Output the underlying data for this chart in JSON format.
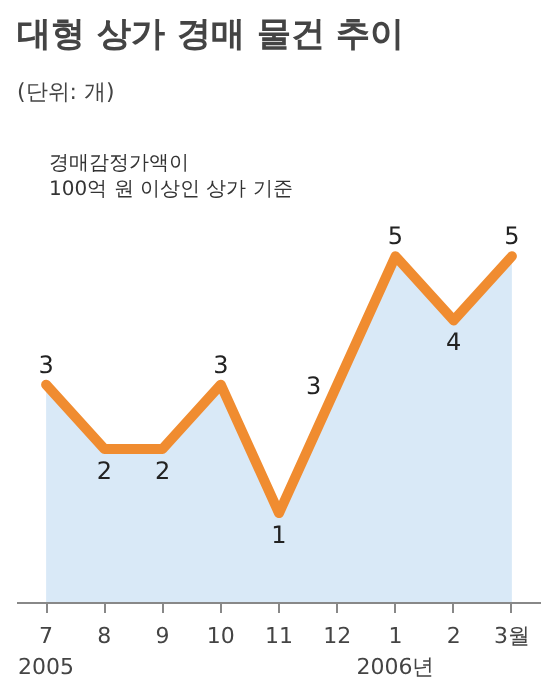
{
  "chart_data": {
    "type": "area",
    "title": "대형 상가 경매 물건 추이",
    "subtitle": "(단위: 개)",
    "categories": [
      "7\n2005",
      "8",
      "9",
      "10",
      "11",
      "12",
      "1\n2006년",
      "2",
      "3월"
    ],
    "series": [
      {
        "color": "#f08c30",
        "values": [
          3,
          2,
          2,
          3,
          1,
          3,
          5,
          4,
          5
        ]
      }
    ],
    "data_labels": true,
    "grid": false,
    "marker": "none",
    "annotations": [
      "경매감정가액이",
      "100억 원 이상인 상가 기준"
    ]
  }
}
